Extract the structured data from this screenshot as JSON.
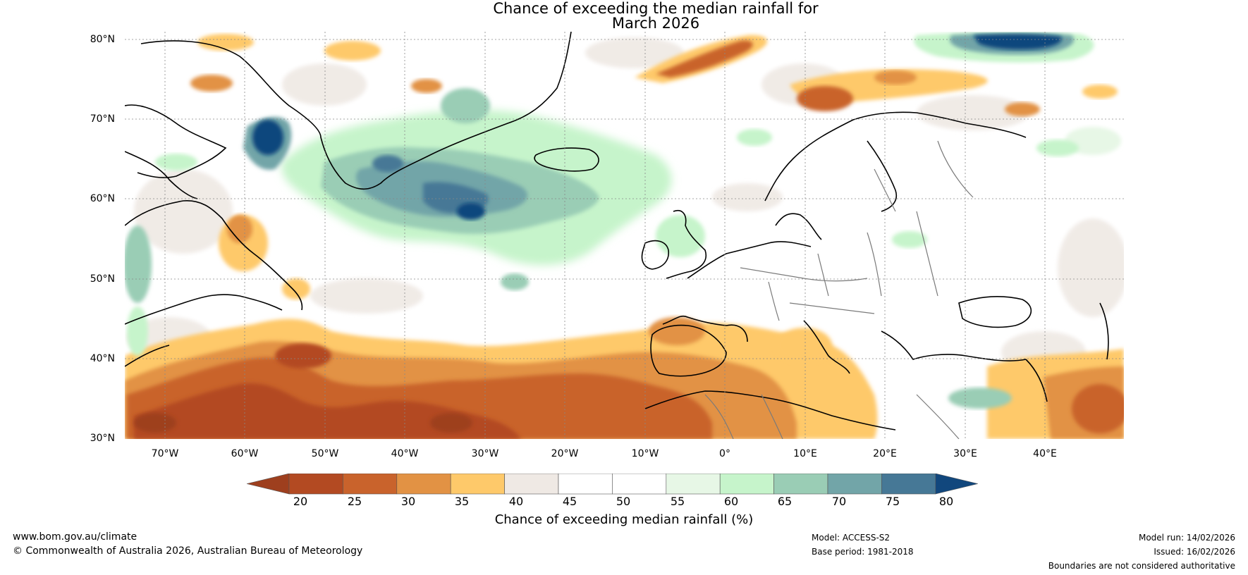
{
  "title_line1": "Chance of exceeding the median rainfall for",
  "title_line2": "March 2026",
  "lat_labels": [
    "80°N",
    "70°N",
    "60°N",
    "50°N",
    "40°N",
    "30°N"
  ],
  "lon_labels": [
    "70°W",
    "60°W",
    "50°W",
    "40°W",
    "30°W",
    "20°W",
    "10°W",
    "0°",
    "10°E",
    "20°E",
    "30°E",
    "40°E"
  ],
  "colorbar": {
    "ticks": [
      "20",
      "25",
      "30",
      "35",
      "40",
      "45",
      "50",
      "55",
      "60",
      "65",
      "70",
      "75",
      "80"
    ],
    "label": "Chance of exceeding median rainfall (%)",
    "colors": [
      "#9e3f1e",
      "#b34a22",
      "#c9632c",
      "#e29244",
      "#fec96a",
      "#efe9e4",
      "#ffffff",
      "#ffffff",
      "#e7f7e6",
      "#c6f4cb",
      "#9acdb5",
      "#72a5a8",
      "#467896",
      "#11477d"
    ]
  },
  "footer": {
    "website": "www.bom.gov.au/climate",
    "copyright": "© Commonwealth of Australia 2026, Australian Bureau of Meteorology",
    "model": "Model: ACCESS-S2",
    "base_period": "Base period: 1981-2018",
    "model_run": "Model run: 14/02/2026",
    "issued": "Issued: 16/02/2026",
    "disclaimer": "Boundaries are not considered authoritative"
  }
}
